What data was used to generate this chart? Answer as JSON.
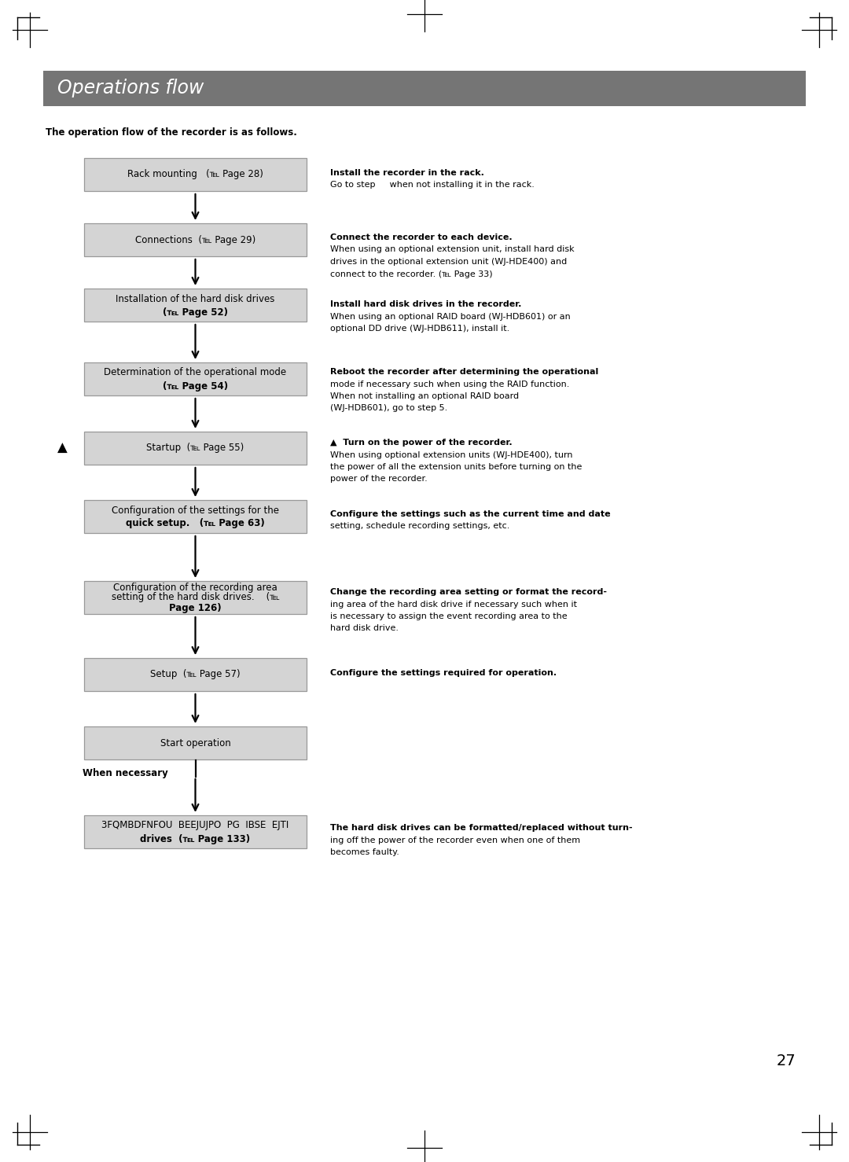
{
  "title": "Operations flow",
  "title_bg_color": "#757575",
  "title_text_color": "#ffffff",
  "page_bg_color": "#ffffff",
  "intro_text": "The operation flow of the recorder is as follows.",
  "box_bg_color": "#d4d4d4",
  "box_border_color": "#999999",
  "page_number": "27",
  "boxes": [
    {
      "label": "Rack mounting   (℡ Page 28)",
      "line2": null,
      "line3": null
    },
    {
      "label": "Connections  (℡ Page 29)",
      "line2": null,
      "line3": null
    },
    {
      "label": "Installation of the hard disk drives",
      "line2": "(℡ Page 52)",
      "line3": null
    },
    {
      "label": "Determination of the operational mode",
      "line2": "(℡ Page 54)",
      "line3": null
    },
    {
      "label": "Startup  (℡ Page 55)",
      "line2": null,
      "line3": null
    },
    {
      "label": "Configuration of the settings for the",
      "line2": "quick setup.   (℡ Page 63)",
      "line3": null
    },
    {
      "label": "Configuration of the recording area",
      "line2": "setting of the hard disk drives.    (℡",
      "line3": "Page 126)"
    },
    {
      "label": "Setup  (℡ Page 57)",
      "line2": null,
      "line3": null
    },
    {
      "label": "Start operation",
      "line2": null,
      "line3": null
    },
    {
      "label": "3FQMBDFNFOU  BEEJUJPO  PG  IBSE  EJTI",
      "line2": "drives  (℡ Page 133)",
      "line3": null
    }
  ],
  "right_texts": [
    {
      "bold": [
        "Install the recorder in the rack."
      ],
      "normal": [
        "Go to step   when not installing it in the rack."
      ]
    },
    {
      "bold": [
        "Connect the recorder to each device."
      ],
      "normal": [
        "When using an optional extension unit, install hard disk",
        "drives in the optional extension unit (WJ-HDE400) and",
        "connect to the recorder. (℡ Page 33)"
      ]
    },
    {
      "bold": [
        "Install hard disk drives in the recorder."
      ],
      "normal": [
        "When using an optional RAID board (WJ-HDB601) or an",
        "optional DD drive (WJ-HDB611), install it."
      ]
    },
    {
      "bold": [
        "Reboot the recorder after determining the operational"
      ],
      "normal": [
        "mode if necessary such when using the RAID function.",
        "When not installing an optional RAID board",
        "(WJ-HDB601), go to step 5."
      ]
    },
    {
      "bold": [
        "▲  Turn on the power of the recorder."
      ],
      "normal": [
        "When using optional extension units (WJ-HDE400), turn",
        "the power of all the extension units before turning on the",
        "power of the recorder."
      ]
    },
    {
      "bold": [
        "Configure the settings such as the current time and date"
      ],
      "normal": [
        "setting, schedule recording settings, etc."
      ]
    },
    {
      "bold": [
        "Change the recording area setting or format the record-"
      ],
      "normal": [
        "ing area of the hard disk drive if necessary such when it",
        "is necessary to assign the event recording area to the",
        "hard disk drive."
      ]
    },
    {
      "bold": [
        "Configure the settings required for operation."
      ],
      "normal": []
    },
    {
      "bold": [
        "The hard disk drives can be formatted/replaced without turn-"
      ],
      "normal": [
        "ing off the power of the recorder even when one of them",
        "becomes faulty."
      ]
    }
  ]
}
